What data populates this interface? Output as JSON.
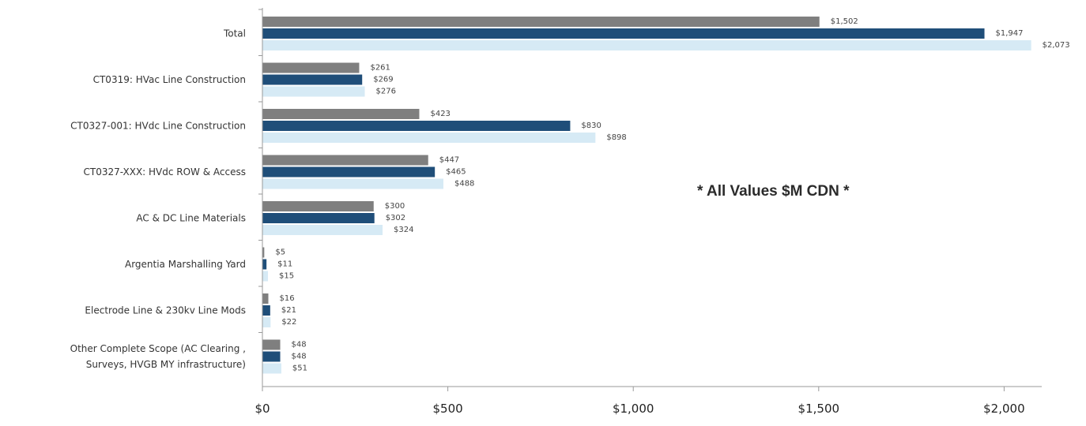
{
  "chart_data": {
    "type": "bar",
    "orientation": "horizontal",
    "categories": [
      "Total",
      "CT0319: HVac Line Construction",
      "CT0327-001: HVdc Line Construction",
      "CT0327-XXX: HVdc ROW & Access",
      "AC & DC Line Materials",
      "Argentia Marshalling Yard",
      "Electrode Line & 230kv Line Mods",
      "Other Complete Scope (AC Clearing , Surveys, HVGB MY infrastructure)"
    ],
    "series": [
      {
        "color": "#7f7f7f",
        "values": [
          1502,
          261,
          423,
          447,
          300,
          5,
          16,
          48
        ],
        "labels": [
          "$1,502",
          "$261",
          "$423",
          "$447",
          "$300",
          "$5",
          "$16",
          "$48"
        ]
      },
      {
        "color": "#1f4e79",
        "values": [
          1947,
          269,
          830,
          465,
          302,
          11,
          21,
          48
        ],
        "labels": [
          "$1,947",
          "$269",
          "$830",
          "$465",
          "$302",
          "$11",
          "$21",
          "$48"
        ]
      },
      {
        "color": "#d6eaf5",
        "values": [
          2073,
          276,
          898,
          488,
          324,
          15,
          22,
          51
        ],
        "labels": [
          "$2,073",
          "$276",
          "$898",
          "$488",
          "$324",
          "$15",
          "$22",
          "$51"
        ]
      }
    ],
    "xlim": [
      0,
      2100
    ],
    "xticks": [
      0,
      500,
      1000,
      1500,
      2000
    ],
    "xtick_labels": [
      "$0",
      "$500",
      "$1,000",
      "$1,500",
      "$2,000"
    ],
    "annotation": "* All Values $M CDN *",
    "grid": false,
    "legend": "none"
  }
}
